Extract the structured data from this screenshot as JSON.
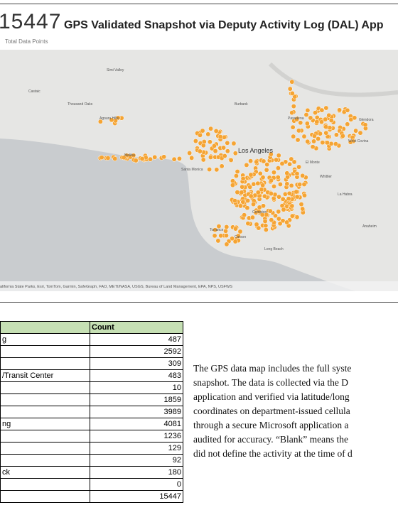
{
  "header": {
    "total": "15447",
    "title": "GPS Validated Snapshot via Deputy Activity Log (DAL) App",
    "subtitle": "Total Data Points"
  },
  "map": {
    "labels": [
      "Los Angeles",
      "Long Beach",
      "Burbank",
      "Pasadena",
      "Torrance",
      "La Habra",
      "West Covina",
      "Malibu",
      "Santa Monica",
      "Thousand Oaks",
      "Agoura Hills",
      "El Monte",
      "Whittier",
      "Compton",
      "Carson",
      "Anaheim",
      "Castaic",
      "Simi Valley",
      "Glendora"
    ],
    "attribution": "alifornia State Parks, Esri, TomTom, Garmin, SafeGraph, FAO, METI/NASA, USGS, Bureau of Land Management, EPA, NPS, USFWS"
  },
  "table": {
    "count_header": "Count",
    "row_labels": [
      "g",
      null,
      null,
      "/Transit Center",
      null,
      null,
      null,
      "ng",
      null,
      null,
      null,
      "ck",
      null,
      null
    ],
    "counts": [
      487,
      2592,
      309,
      483,
      10,
      1859,
      3989,
      4081,
      1236,
      129,
      92,
      180,
      0,
      15447
    ]
  },
  "paragraph": [
    "The GPS data map includes the full syste",
    "snapshot. The data is collected via the D",
    "application and verified via latitude/long",
    "coordinates on department-issued cellula",
    "through a secure Microsoft application a",
    "audited for accuracy. “Blank” means the",
    "did not define the activity at the time of d"
  ]
}
